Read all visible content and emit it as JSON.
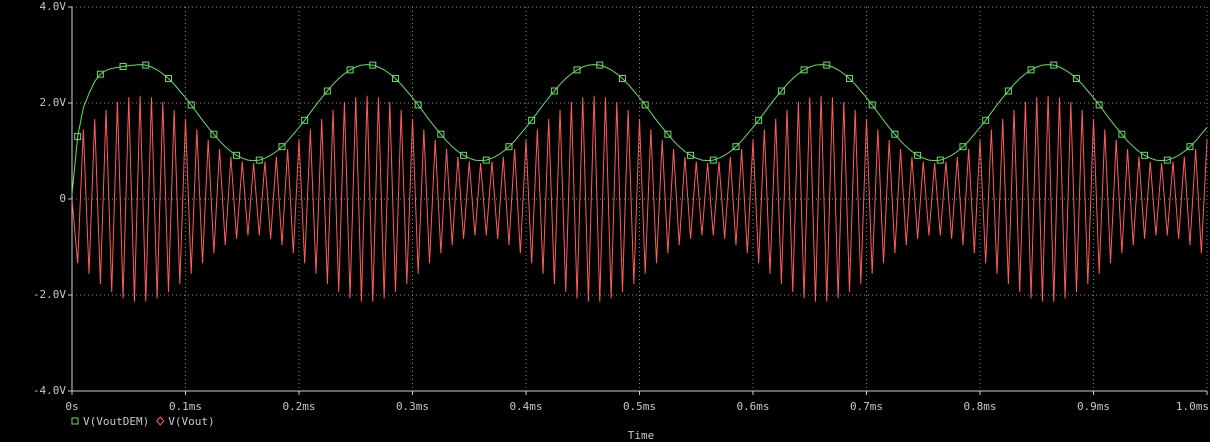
{
  "chart_data": {
    "type": "line",
    "x_label": "Time",
    "xlim": [
      0,
      1
    ],
    "xticks": [
      {
        "value": 0,
        "label": "0s"
      },
      {
        "value": 0.1,
        "label": "0.1ms"
      },
      {
        "value": 0.2,
        "label": "0.2ms"
      },
      {
        "value": 0.3,
        "label": "0.3ms"
      },
      {
        "value": 0.4,
        "label": "0.4ms"
      },
      {
        "value": 0.5,
        "label": "0.5ms"
      },
      {
        "value": 0.6,
        "label": "0.6ms"
      },
      {
        "value": 0.7,
        "label": "0.7ms"
      },
      {
        "value": 0.8,
        "label": "0.8ms"
      },
      {
        "value": 0.9,
        "label": "0.9ms"
      },
      {
        "value": 1,
        "label": "1.0ms"
      }
    ],
    "ylim": [
      -4,
      4
    ],
    "yticks": [
      {
        "value": 4,
        "label": "4.0V"
      },
      {
        "value": 2,
        "label": "2.0V"
      },
      0,
      {
        "value": -2,
        "label": "-2.0V"
      },
      {
        "value": -4,
        "label": "-4.0V"
      }
    ],
    "grid": true,
    "legend": "bottom-left",
    "x": [
      0,
      0.005,
      0.01,
      0.015,
      0.02,
      0.025,
      0.03,
      0.035,
      0.04,
      0.045,
      0.05,
      0.055,
      0.06,
      0.065,
      0.07,
      0.075,
      0.08,
      0.085,
      0.09,
      0.095,
      0.1,
      0.105,
      0.11,
      0.115,
      0.12,
      0.125,
      0.13,
      0.135,
      0.14,
      0.145,
      0.15,
      0.155,
      0.16,
      0.165,
      0.17,
      0.175,
      0.18,
      0.185,
      0.19,
      0.195,
      0.2,
      0.205,
      0.21,
      0.215,
      0.22,
      0.225,
      0.23,
      0.235,
      0.24,
      0.245,
      0.25,
      0.255,
      0.26,
      0.265,
      0.27,
      0.275,
      0.28,
      0.285,
      0.29,
      0.295,
      0.3,
      0.305,
      0.31,
      0.315,
      0.32,
      0.325,
      0.33,
      0.335,
      0.34,
      0.345,
      0.35,
      0.355,
      0.36,
      0.365,
      0.37,
      0.375,
      0.38,
      0.385,
      0.39,
      0.395,
      0.4,
      0.405,
      0.41,
      0.415,
      0.42,
      0.425,
      0.43,
      0.435,
      0.44,
      0.445,
      0.45,
      0.455,
      0.46,
      0.465,
      0.47,
      0.475,
      0.48,
      0.485,
      0.49,
      0.495,
      0.5,
      0.505,
      0.51,
      0.515,
      0.52,
      0.525,
      0.53,
      0.535,
      0.54,
      0.545,
      0.55,
      0.555,
      0.56,
      0.565,
      0.57,
      0.575,
      0.58,
      0.585,
      0.59,
      0.595,
      0.6,
      0.605,
      0.61,
      0.615,
      0.62,
      0.625,
      0.63,
      0.635,
      0.64,
      0.645,
      0.65,
      0.655,
      0.66,
      0.665,
      0.67,
      0.675,
      0.68,
      0.685,
      0.69,
      0.695,
      0.7,
      0.705,
      0.71,
      0.715,
      0.72,
      0.725,
      0.73,
      0.735,
      0.74,
      0.745,
      0.75,
      0.755,
      0.76,
      0.765,
      0.77,
      0.775,
      0.78,
      0.785,
      0.79,
      0.795,
      0.8,
      0.805,
      0.81,
      0.815,
      0.82,
      0.825,
      0.83,
      0.835,
      0.84,
      0.845,
      0.85,
      0.855,
      0.86,
      0.865,
      0.87,
      0.875,
      0.88,
      0.885,
      0.89,
      0.895,
      0.9,
      0.905,
      0.91,
      0.915,
      0.92,
      0.925,
      0.93,
      0.935,
      0.94,
      0.945,
      0.95,
      0.955,
      0.96,
      0.965,
      0.97,
      0.975,
      0.98,
      0.985,
      0.99,
      0.995,
      1
    ],
    "series": [
      {
        "name": "V(VoutDEM)",
        "color": "#66e066",
        "marker": "square",
        "values": [
          0.1,
          1.3,
          1.9,
          2.2,
          2.45,
          2.6,
          2.68,
          2.72,
          2.74,
          2.76,
          2.78,
          2.79,
          2.8,
          2.79,
          2.75,
          2.69,
          2.61,
          2.51,
          2.39,
          2.25,
          2.11,
          1.96,
          1.8,
          1.64,
          1.49,
          1.35,
          1.21,
          1.09,
          0.99,
          0.91,
          0.85,
          0.81,
          0.8,
          0.81,
          0.85,
          0.91,
          0.99,
          1.09,
          1.21,
          1.35,
          1.49,
          1.64,
          1.8,
          1.96,
          2.11,
          2.25,
          2.39,
          2.51,
          2.61,
          2.69,
          2.75,
          2.79,
          2.8,
          2.79,
          2.75,
          2.69,
          2.61,
          2.51,
          2.39,
          2.25,
          2.11,
          1.96,
          1.8,
          1.64,
          1.49,
          1.35,
          1.21,
          1.09,
          0.99,
          0.91,
          0.85,
          0.81,
          0.8,
          0.81,
          0.85,
          0.91,
          0.99,
          1.09,
          1.21,
          1.35,
          1.49,
          1.64,
          1.8,
          1.96,
          2.11,
          2.25,
          2.39,
          2.51,
          2.61,
          2.69,
          2.75,
          2.79,
          2.8,
          2.79,
          2.75,
          2.69,
          2.61,
          2.51,
          2.39,
          2.25,
          2.11,
          1.96,
          1.8,
          1.64,
          1.49,
          1.35,
          1.21,
          1.09,
          0.99,
          0.91,
          0.85,
          0.81,
          0.8,
          0.81,
          0.85,
          0.91,
          0.99,
          1.09,
          1.21,
          1.35,
          1.49,
          1.64,
          1.8,
          1.96,
          2.11,
          2.25,
          2.39,
          2.51,
          2.61,
          2.69,
          2.75,
          2.79,
          2.8,
          2.79,
          2.75,
          2.69,
          2.61,
          2.51,
          2.39,
          2.25,
          2.11,
          1.96,
          1.8,
          1.64,
          1.49,
          1.35,
          1.21,
          1.09,
          0.99,
          0.91,
          0.85,
          0.81,
          0.8,
          0.81,
          0.85,
          0.91,
          0.99,
          1.09,
          1.21,
          1.35,
          1.49,
          1.64,
          1.8,
          1.96,
          2.11,
          2.25,
          2.39,
          2.51,
          2.61,
          2.69,
          2.75,
          2.79,
          2.8,
          2.79,
          2.75,
          2.69,
          2.61,
          2.51,
          2.39,
          2.25,
          2.11,
          1.96,
          1.8,
          1.64,
          1.49,
          1.35,
          1.21,
          1.09,
          0.99,
          0.91,
          0.85,
          0.81,
          0.8,
          0.81,
          0.85,
          0.91,
          0.99,
          1.09,
          1.21,
          1.35,
          1.49
        ]
      },
      {
        "name": "V(Vout)",
        "color": "#ff5c5c",
        "marker": "diamond",
        "values": [
          0,
          -1.34,
          1.45,
          -1.56,
          1.67,
          -1.77,
          1.86,
          -1.94,
          2.02,
          -2.07,
          2.12,
          -2.14,
          2.15,
          -2.14,
          2.12,
          -2.07,
          2.02,
          -1.94,
          1.86,
          -1.77,
          1.67,
          -1.56,
          1.45,
          -1.34,
          1.23,
          -1.13,
          1.04,
          -0.96,
          0.88,
          -0.83,
          0.78,
          -0.76,
          0.75,
          -0.76,
          0.78,
          -0.83,
          0.88,
          -0.96,
          1.04,
          -1.13,
          1.23,
          -1.34,
          1.45,
          -1.56,
          1.67,
          -1.77,
          1.86,
          -1.94,
          2.02,
          -2.07,
          2.12,
          -2.14,
          2.15,
          -2.14,
          2.12,
          -2.07,
          2.02,
          -1.94,
          1.86,
          -1.77,
          1.67,
          -1.56,
          1.45,
          -1.34,
          1.23,
          -1.13,
          1.04,
          -0.96,
          0.88,
          -0.83,
          0.78,
          -0.76,
          0.75,
          -0.76,
          0.78,
          -0.83,
          0.88,
          -0.96,
          1.04,
          -1.13,
          1.23,
          -1.34,
          1.45,
          -1.56,
          1.67,
          -1.77,
          1.86,
          -1.94,
          2.02,
          -2.07,
          2.12,
          -2.14,
          2.15,
          -2.14,
          2.12,
          -2.07,
          2.02,
          -1.94,
          1.86,
          -1.77,
          1.67,
          -1.56,
          1.45,
          -1.34,
          1.23,
          -1.13,
          1.04,
          -0.96,
          0.88,
          -0.83,
          0.78,
          -0.76,
          0.75,
          -0.76,
          0.78,
          -0.83,
          0.88,
          -0.96,
          1.04,
          -1.13,
          1.23,
          -1.34,
          1.45,
          -1.56,
          1.67,
          -1.77,
          1.86,
          -1.94,
          2.02,
          -2.07,
          2.12,
          -2.14,
          2.15,
          -2.14,
          2.12,
          -2.07,
          2.02,
          -1.94,
          1.86,
          -1.77,
          1.67,
          -1.56,
          1.45,
          -1.34,
          1.23,
          -1.13,
          1.04,
          -0.96,
          0.88,
          -0.83,
          0.78,
          -0.76,
          0.75,
          -0.76,
          0.78,
          -0.83,
          0.88,
          -0.96,
          1.04,
          -1.13,
          1.23,
          -1.34,
          1.45,
          -1.56,
          1.67,
          -1.77,
          1.86,
          -1.94,
          2.02,
          -2.07,
          2.12,
          -2.14,
          2.15,
          -2.14,
          2.12,
          -2.07,
          2.02,
          -1.94,
          1.86,
          -1.77,
          1.67,
          -1.56,
          1.45,
          -1.34,
          1.23,
          -1.13,
          1.04,
          -0.96,
          0.88,
          -0.83,
          0.78,
          -0.76,
          0.75,
          -0.76,
          0.78,
          -0.83,
          0.88,
          -0.96,
          1.04,
          -1.13,
          1.23
        ]
      }
    ]
  }
}
